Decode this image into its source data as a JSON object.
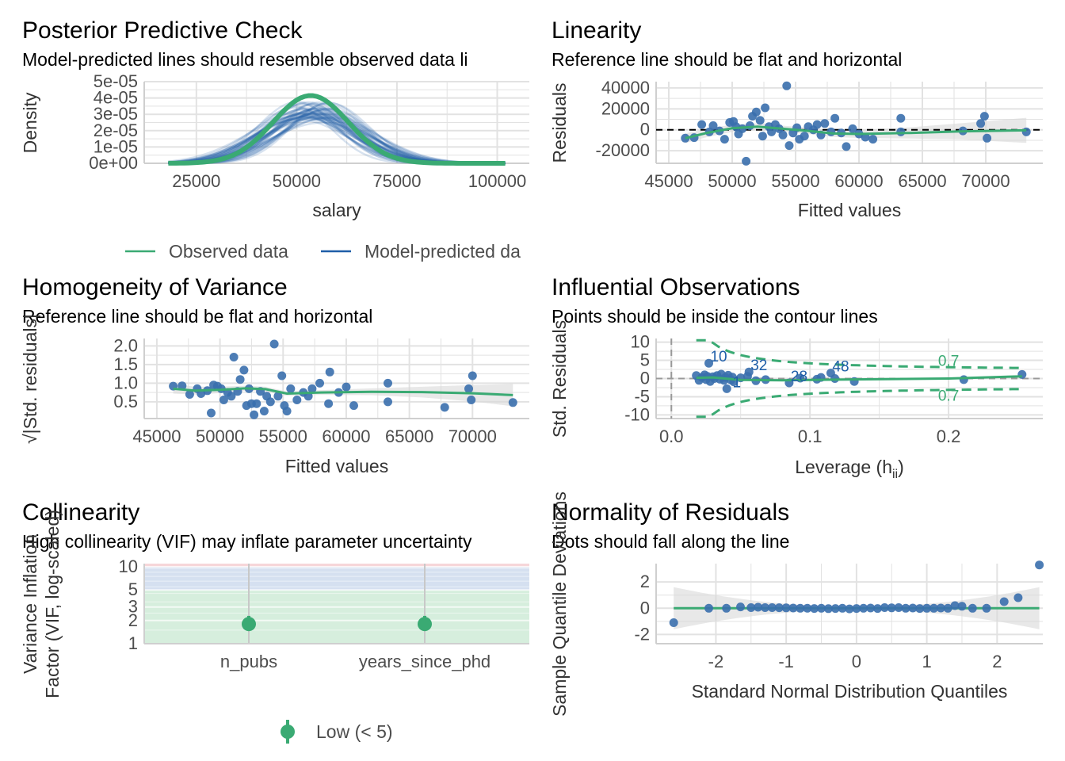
{
  "colors": {
    "observed": "#3aaa73",
    "predicted": "#1f5ea8",
    "point": "#3a6fad",
    "band": "#d8d8d8",
    "grid": "#e2e2e2",
    "contour": "#3aaa73",
    "zone_low": "#d6eedd",
    "zone_mod": "#d5e0f0",
    "zone_high": "#f6d6d9"
  },
  "panels": {
    "ppc": {
      "title": "Posterior Predictive Check",
      "subtitle": "Model-predicted lines should resemble observed data li"
    },
    "lin": {
      "title": "Linearity",
      "subtitle": "Reference line should be flat and horizontal"
    },
    "hom": {
      "title": "Homogeneity of Variance",
      "subtitle": "Reference line should be flat and horizontal"
    },
    "inf": {
      "title": "Influential Observations",
      "subtitle": "Points should be inside the contour lines"
    },
    "col": {
      "title": "Collinearity",
      "subtitle": "High collinearity (VIF) may inflate parameter uncertainty"
    },
    "nor": {
      "title": "Normality of Residuals",
      "subtitle": "Dots should fall along the line"
    }
  },
  "chart_data": [
    {
      "type": "line",
      "id": "ppc",
      "title": "Posterior Predictive Check",
      "subtitle": "Model-predicted lines should resemble observed data li",
      "xlabel": "salary",
      "ylabel": "Density",
      "xlim": [
        12000,
        108000
      ],
      "ylim": [
        0,
        5e-05
      ],
      "xticks": [
        25000,
        50000,
        75000,
        100000
      ],
      "xtick_labels": [
        "25000",
        "50000",
        "75000",
        "100000"
      ],
      "yticks": [
        0,
        1e-05,
        2e-05,
        3e-05,
        4e-05,
        5e-05
      ],
      "ytick_labels": [
        "0e+00",
        "1e-05",
        "2e-05",
        "3e-05",
        "4e-05",
        "5e-05"
      ],
      "observed": {
        "name": "Observed data",
        "mean": 53500,
        "sd": 9400,
        "peak": 4.15e-05,
        "xrange": [
          18000,
          102000
        ]
      },
      "predicted": {
        "name": "Model-predicted data",
        "count": 50,
        "mean": 54000,
        "sd": 11000,
        "peak": 3.5e-05
      },
      "legend": [
        "Observed data",
        "Model-predicted da"
      ]
    },
    {
      "type": "scatter",
      "id": "lin",
      "title": "Linearity",
      "subtitle": "Reference line should be flat and horizontal",
      "xlabel": "Fitted values",
      "ylabel": "Residuals",
      "xlim": [
        44000,
        74500
      ],
      "ylim": [
        -32000,
        46000
      ],
      "xticks": [
        45000,
        50000,
        55000,
        60000,
        65000,
        70000
      ],
      "xtick_labels": [
        "45000",
        "50000",
        "55000",
        "60000",
        "65000",
        "70000"
      ],
      "yticks": [
        -20000,
        0,
        20000,
        40000
      ],
      "ytick_labels": [
        "-20000",
        "0",
        "20000",
        "40000"
      ],
      "points": [
        [
          46300,
          -8000
        ],
        [
          47000,
          -7500
        ],
        [
          47600,
          5000
        ],
        [
          48200,
          -2000
        ],
        [
          48500,
          4000
        ],
        [
          49000,
          -1000
        ],
        [
          49400,
          -9000
        ],
        [
          49800,
          7000
        ],
        [
          50100,
          8000
        ],
        [
          50300,
          3000
        ],
        [
          50500,
          -4000
        ],
        [
          50800,
          1000
        ],
        [
          51100,
          -30000
        ],
        [
          51400,
          4000
        ],
        [
          51600,
          13000
        ],
        [
          51900,
          17000
        ],
        [
          52200,
          9000
        ],
        [
          52400,
          -6000
        ],
        [
          52600,
          21000
        ],
        [
          52900,
          3000
        ],
        [
          53100,
          -2000
        ],
        [
          53400,
          5000
        ],
        [
          53700,
          1000
        ],
        [
          54000,
          -5000
        ],
        [
          54300,
          42000
        ],
        [
          54500,
          -15000
        ],
        [
          54800,
          -3000
        ],
        [
          55100,
          2000
        ],
        [
          55300,
          -9000
        ],
        [
          55700,
          -6000
        ],
        [
          56000,
          3000
        ],
        [
          56400,
          0
        ],
        [
          56700,
          5000
        ],
        [
          57000,
          -5000
        ],
        [
          57300,
          6000
        ],
        [
          57800,
          -2000
        ],
        [
          58100,
          11000
        ],
        [
          58600,
          -3000
        ],
        [
          59000,
          -16000
        ],
        [
          59500,
          1000
        ],
        [
          60000,
          -4000
        ],
        [
          60500,
          -7000
        ],
        [
          61100,
          -9000
        ],
        [
          63300,
          -2000
        ],
        [
          63300,
          11000
        ],
        [
          68200,
          -1000
        ],
        [
          69600,
          6000
        ],
        [
          69900,
          13000
        ],
        [
          70100,
          -8000
        ],
        [
          73200,
          -2000
        ]
      ],
      "smooth": [
        [
          46300,
          -8000
        ],
        [
          48000,
          -3000
        ],
        [
          50000,
          1500
        ],
        [
          52000,
          3000
        ],
        [
          54000,
          1000
        ],
        [
          56000,
          -1000
        ],
        [
          58000,
          -3500
        ],
        [
          60000,
          -4000
        ],
        [
          64000,
          -3000
        ],
        [
          68000,
          -1500
        ],
        [
          73200,
          -500
        ]
      ],
      "band": {
        "half_width_min": 3000,
        "half_width_max": 12000
      },
      "reference_y": 0
    },
    {
      "type": "scatter",
      "id": "hom",
      "title": "Homogeneity of Variance",
      "subtitle": "Reference line should be flat and horizontal",
      "xlabel": "Fitted values",
      "ylabel": "√|Std. residuals|",
      "xlim": [
        44000,
        74500
      ],
      "ylim": [
        0.05,
        2.2
      ],
      "xticks": [
        45000,
        50000,
        55000,
        60000,
        65000,
        70000
      ],
      "xtick_labels": [
        "45000",
        "50000",
        "55000",
        "60000",
        "65000",
        "70000"
      ],
      "yticks": [
        0.5,
        1.0,
        1.5,
        2.0
      ],
      "ytick_labels": [
        "0.5",
        "1.0",
        "1.5",
        "2.0"
      ],
      "points": [
        [
          46300,
          0.92
        ],
        [
          47000,
          0.93
        ],
        [
          47600,
          0.7
        ],
        [
          48200,
          0.85
        ],
        [
          48500,
          0.72
        ],
        [
          49000,
          0.8
        ],
        [
          49300,
          0.2
        ],
        [
          49500,
          0.95
        ],
        [
          49800,
          0.92
        ],
        [
          50100,
          0.85
        ],
        [
          50300,
          0.55
        ],
        [
          50600,
          0.75
        ],
        [
          50900,
          0.65
        ],
        [
          51100,
          1.7
        ],
        [
          51400,
          0.78
        ],
        [
          51600,
          1.1
        ],
        [
          51900,
          1.35
        ],
        [
          52100,
          0.4
        ],
        [
          52300,
          0.85
        ],
        [
          52500,
          0.45
        ],
        [
          52700,
          0.15
        ],
        [
          52900,
          0.45
        ],
        [
          53200,
          0.78
        ],
        [
          53500,
          0.25
        ],
        [
          53700,
          0.65
        ],
        [
          54000,
          0.5
        ],
        [
          54300,
          2.05
        ],
        [
          54600,
          0.65
        ],
        [
          54900,
          1.2
        ],
        [
          55100,
          0.4
        ],
        [
          55300,
          0.25
        ],
        [
          55600,
          0.85
        ],
        [
          56100,
          0.55
        ],
        [
          56600,
          0.75
        ],
        [
          57000,
          0.65
        ],
        [
          57300,
          0.85
        ],
        [
          57900,
          1.0
        ],
        [
          58600,
          0.45
        ],
        [
          58700,
          1.3
        ],
        [
          59400,
          0.75
        ],
        [
          60000,
          0.9
        ],
        [
          60600,
          0.4
        ],
        [
          63300,
          0.5
        ],
        [
          63300,
          1.0
        ],
        [
          67800,
          0.35
        ],
        [
          69700,
          0.85
        ],
        [
          69900,
          0.55
        ],
        [
          70000,
          1.2
        ],
        [
          73200,
          0.48
        ]
      ],
      "smooth": [
        [
          46300,
          0.85
        ],
        [
          48000,
          0.8
        ],
        [
          50000,
          0.82
        ],
        [
          52000,
          0.86
        ],
        [
          53600,
          0.84
        ],
        [
          55300,
          0.72
        ],
        [
          58000,
          0.75
        ],
        [
          62000,
          0.77
        ],
        [
          66000,
          0.76
        ],
        [
          70000,
          0.73
        ],
        [
          73200,
          0.68
        ]
      ],
      "band": {
        "half_width_min": 0.06,
        "half_width_max": 0.3
      }
    },
    {
      "type": "scatter",
      "id": "inf",
      "title": "Influential Observations",
      "subtitle": "Points should be inside the contour lines",
      "xlabel": "Leverage (h",
      "xlabel_sub": "ii",
      "xlabel_end": ")",
      "ylabel": "Std. Residuals",
      "xlim": [
        -0.011,
        0.268
      ],
      "ylim": [
        -11,
        11
      ],
      "xticks": [
        0.0,
        0.1,
        0.2
      ],
      "xtick_labels": [
        "0.0",
        "0.1",
        "0.2"
      ],
      "yticks": [
        -10,
        -5,
        0,
        5,
        10
      ],
      "ytick_labels": [
        "-10",
        "-5",
        "0",
        "5",
        "10"
      ],
      "points": [
        [
          0.018,
          0.8
        ],
        [
          0.02,
          -0.5
        ],
        [
          0.022,
          0.3
        ],
        [
          0.024,
          1.0
        ],
        [
          0.025,
          -0.3
        ],
        [
          0.026,
          0.6
        ],
        [
          0.027,
          4.2
        ],
        [
          0.028,
          -0.8
        ],
        [
          0.03,
          0.5
        ],
        [
          0.031,
          0.0
        ],
        [
          0.033,
          0.8
        ],
        [
          0.035,
          -0.2
        ],
        [
          0.036,
          1.2
        ],
        [
          0.038,
          -0.5
        ],
        [
          0.039,
          0.3
        ],
        [
          0.04,
          -2.8
        ],
        [
          0.041,
          0.9
        ],
        [
          0.043,
          -0.4
        ],
        [
          0.044,
          0.4
        ],
        [
          0.045,
          -0.9
        ],
        [
          0.05,
          0.2
        ],
        [
          0.055,
          0.6
        ],
        [
          0.056,
          1.8
        ],
        [
          0.061,
          -0.6
        ],
        [
          0.068,
          -0.3
        ],
        [
          0.085,
          -1.2
        ],
        [
          0.093,
          0.1
        ],
        [
          0.105,
          -0.2
        ],
        [
          0.108,
          0.3
        ],
        [
          0.115,
          1.5
        ],
        [
          0.118,
          0.0
        ],
        [
          0.132,
          -0.8
        ],
        [
          0.211,
          -0.3
        ],
        [
          0.253,
          1.1
        ]
      ],
      "labels": [
        {
          "text": "10",
          "x": 0.027,
          "y": 4.2
        },
        {
          "text": "32",
          "x": 0.056,
          "y": 1.8
        },
        {
          "text": "1",
          "x": 0.043,
          "y": -2.8
        },
        {
          "text": "28",
          "x": 0.085,
          "y": -1.2
        },
        {
          "text": "48",
          "x": 0.115,
          "y": 1.5
        }
      ],
      "contour_label": "0.7",
      "smooth": [
        [
          0.018,
          0.2
        ],
        [
          0.03,
          0.3
        ],
        [
          0.05,
          -0.4
        ],
        [
          0.08,
          -0.5
        ],
        [
          0.12,
          -0.3
        ],
        [
          0.2,
          0.0
        ],
        [
          0.253,
          0.6
        ]
      ]
    },
    {
      "type": "scatter",
      "id": "col",
      "title": "Collinearity",
      "subtitle": "High collinearity (VIF) may inflate parameter uncertainty",
      "xlabel": "",
      "ylabel": "Variance Inflation",
      "ylabel2": "Factor (VIF, log-scaled)",
      "scale": "log",
      "ylim": [
        1,
        11
      ],
      "yticks": [
        1,
        2,
        3,
        5,
        10
      ],
      "ytick_labels": [
        "1",
        "2",
        "3",
        "5",
        "10"
      ],
      "categories": [
        "n_pubs",
        "years_since_phd"
      ],
      "values": [
        1.8,
        1.8
      ],
      "ci": [
        [
          1.5,
          2.3
        ],
        [
          1.5,
          2.3
        ]
      ],
      "zones": {
        "low": [
          1,
          5
        ],
        "moderate": [
          5,
          10
        ],
        "high": [
          10,
          11
        ]
      },
      "legend": [
        "Low (< 5)"
      ]
    },
    {
      "type": "scatter",
      "id": "nor",
      "title": "Normality of Residuals",
      "subtitle": "Dots should fall along the line",
      "xlabel": "Standard Normal Distribution Quantiles",
      "ylabel": "Sample Quantile Deviations",
      "xlim": [
        -2.85,
        2.65
      ],
      "ylim": [
        -2.7,
        3.4
      ],
      "xticks": [
        -2,
        -1,
        0,
        1,
        2
      ],
      "xtick_labels": [
        "-2",
        "-1",
        "0",
        "1",
        "2"
      ],
      "yticks": [
        -2,
        0,
        2
      ],
      "ytick_labels": [
        "-2",
        "0",
        "2"
      ],
      "points": [
        [
          -2.6,
          -1.1
        ],
        [
          -2.1,
          0.0
        ],
        [
          -1.85,
          0.0
        ],
        [
          -1.65,
          0.1
        ],
        [
          -1.5,
          0.05
        ],
        [
          -1.4,
          0.08
        ],
        [
          -1.3,
          0.05
        ],
        [
          -1.2,
          0.05
        ],
        [
          -1.1,
          0.04
        ],
        [
          -1.0,
          0.03
        ],
        [
          -0.9,
          0.02
        ],
        [
          -0.8,
          0.0
        ],
        [
          -0.7,
          0.0
        ],
        [
          -0.6,
          -0.02
        ],
        [
          -0.5,
          0.0
        ],
        [
          -0.4,
          -0.03
        ],
        [
          -0.3,
          -0.02
        ],
        [
          -0.2,
          0.0
        ],
        [
          -0.1,
          -0.05
        ],
        [
          0.0,
          -0.02
        ],
        [
          0.1,
          0.0
        ],
        [
          0.2,
          0.02
        ],
        [
          0.3,
          -0.02
        ],
        [
          0.4,
          0.05
        ],
        [
          0.5,
          0.03
        ],
        [
          0.6,
          0.05
        ],
        [
          0.7,
          0.0
        ],
        [
          0.8,
          0.02
        ],
        [
          0.9,
          -0.02
        ],
        [
          1.0,
          0.0
        ],
        [
          1.1,
          0.0
        ],
        [
          1.2,
          0.02
        ],
        [
          1.3,
          0.0
        ],
        [
          1.4,
          0.2
        ],
        [
          1.5,
          0.15
        ],
        [
          1.65,
          0.0
        ],
        [
          1.85,
          0.0
        ],
        [
          2.1,
          0.5
        ],
        [
          2.3,
          0.8
        ],
        [
          2.6,
          3.3
        ]
      ],
      "line_y": 0
    }
  ]
}
